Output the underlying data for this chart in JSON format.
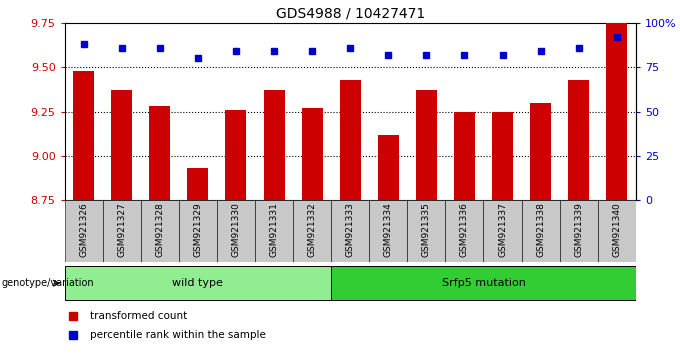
{
  "title": "GDS4988 / 10427471",
  "categories": [
    "GSM921326",
    "GSM921327",
    "GSM921328",
    "GSM921329",
    "GSM921330",
    "GSM921331",
    "GSM921332",
    "GSM921333",
    "GSM921334",
    "GSM921335",
    "GSM921336",
    "GSM921337",
    "GSM921338",
    "GSM921339",
    "GSM921340"
  ],
  "bar_values": [
    9.48,
    9.37,
    9.28,
    8.93,
    9.26,
    9.37,
    9.27,
    9.43,
    9.12,
    9.37,
    9.25,
    9.25,
    9.3,
    9.43,
    9.75
  ],
  "dot_values": [
    88,
    86,
    86,
    80,
    84,
    84,
    84,
    86,
    82,
    82,
    82,
    82,
    84,
    86,
    92
  ],
  "bar_color": "#cc0000",
  "dot_color": "#0000cc",
  "ylim_left": [
    8.75,
    9.75
  ],
  "ylim_right": [
    0,
    100
  ],
  "yticks_left": [
    8.75,
    9.0,
    9.25,
    9.5,
    9.75
  ],
  "yticks_right": [
    0,
    25,
    50,
    75,
    100
  ],
  "ytick_labels_right": [
    "0",
    "25",
    "50",
    "75",
    "100%"
  ],
  "hlines": [
    9.0,
    9.25,
    9.5
  ],
  "groups": [
    {
      "label": "wild type",
      "start": 0,
      "end": 7,
      "color": "#90ee90"
    },
    {
      "label": "Srfp5 mutation",
      "start": 7,
      "end": 15,
      "color": "#32cd32"
    }
  ],
  "genotype_label": "genotype/variation",
  "legend_bar_label": "transformed count",
  "legend_dot_label": "percentile rank within the sample",
  "bar_width": 0.55,
  "background_color": "#ffffff",
  "xtick_bg_color": "#c8c8c8"
}
